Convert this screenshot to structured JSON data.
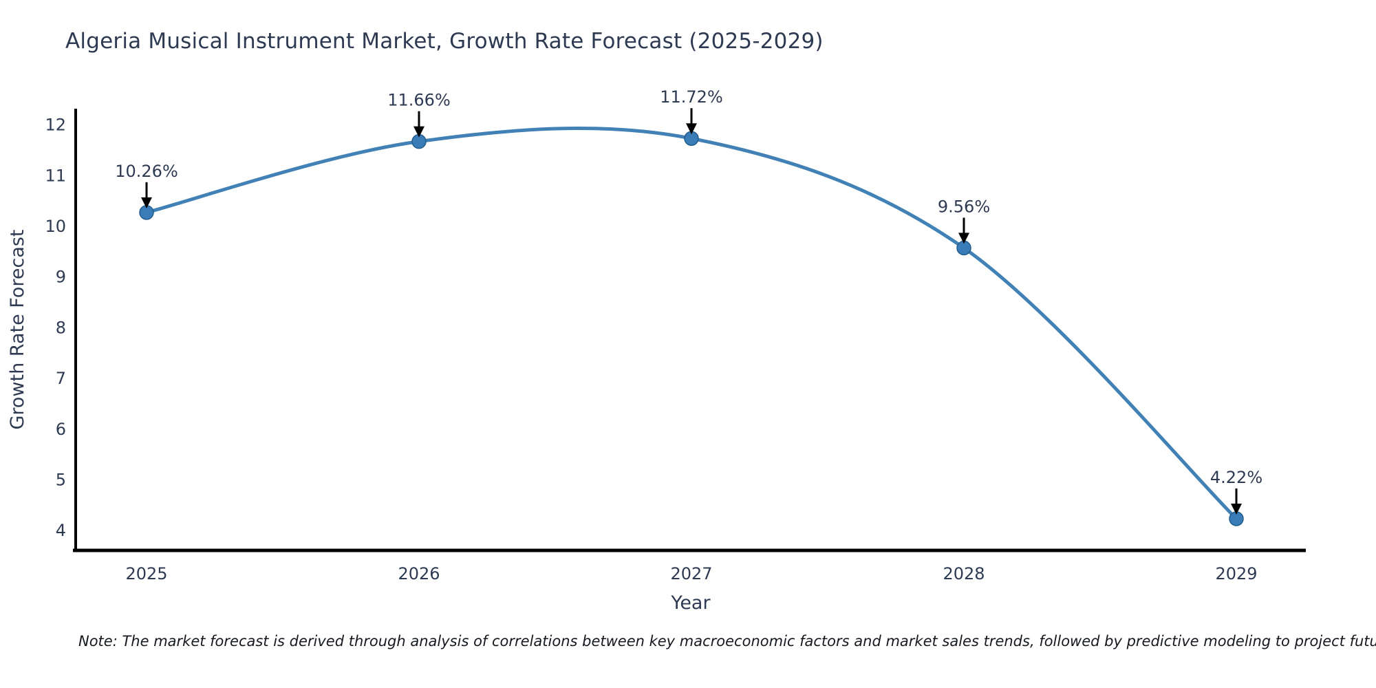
{
  "chart_data": {
    "type": "line",
    "title": "Algeria Musical Instrument Market, Growth Rate Forecast (2025-2029)",
    "xlabel": "Year",
    "ylabel": "Growth Rate Forecast",
    "x": [
      2025,
      2026,
      2027,
      2028,
      2029
    ],
    "series": [
      {
        "name": "Growth Rate Forecast",
        "values": [
          10.26,
          11.66,
          11.72,
          9.56,
          4.22
        ],
        "point_labels": [
          "10.26%",
          "11.66%",
          "11.72%",
          "9.56%",
          "4.22%"
        ]
      }
    ],
    "yticks": [
      4,
      5,
      6,
      7,
      8,
      9,
      10,
      11,
      12
    ],
    "xticks": [
      "2025",
      "2026",
      "2027",
      "2028",
      "2029"
    ],
    "ylim": [
      3.6,
      12.3
    ],
    "grid": false,
    "legend_position": "none",
    "curve": "smooth-spline",
    "annotations_style": "value label above point with black arrow pointing down to marker",
    "colors": {
      "line": "#4181b5",
      "marker_fill": "#3a7cb8",
      "marker_edge": "#235d8c",
      "text": "#2e3a52",
      "axis": "#000000",
      "arrow": "#000000"
    }
  },
  "footnote": "Note: The market forecast is derived through analysis of correlations between key macroeconomic factors and market sales trends, followed by predictive modeling to project future sales"
}
